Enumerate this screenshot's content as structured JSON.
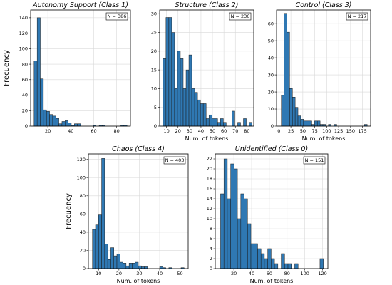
{
  "chart_data": [
    {
      "type": "bar",
      "title": "Autonomy Support (Class 1)",
      "n_label": "N = 386",
      "xlabel": "",
      "ylabel": "Frecuency",
      "xlim": [
        5,
        92
      ],
      "ylim": [
        0,
        150
      ],
      "xticks": [
        20,
        40,
        60,
        80
      ],
      "yticks": [
        0,
        20,
        40,
        60,
        80,
        100,
        120,
        140
      ],
      "bin_width": 2.7,
      "bins": [
        {
          "x": 8,
          "v": 84
        },
        {
          "x": 10.7,
          "v": 140
        },
        {
          "x": 13.4,
          "v": 61
        },
        {
          "x": 16.1,
          "v": 21
        },
        {
          "x": 18.8,
          "v": 19
        },
        {
          "x": 21.5,
          "v": 15
        },
        {
          "x": 24.2,
          "v": 13
        },
        {
          "x": 26.9,
          "v": 10
        },
        {
          "x": 29.6,
          "v": 3
        },
        {
          "x": 32.3,
          "v": 6
        },
        {
          "x": 35,
          "v": 7
        },
        {
          "x": 37.7,
          "v": 4
        },
        {
          "x": 40.4,
          "v": 1
        },
        {
          "x": 43.1,
          "v": 3
        },
        {
          "x": 45.8,
          "v": 3
        },
        {
          "x": 59.3,
          "v": 1
        },
        {
          "x": 64.7,
          "v": 1
        },
        {
          "x": 67.4,
          "v": 1
        },
        {
          "x": 83.6,
          "v": 1
        },
        {
          "x": 86.3,
          "v": 1
        }
      ]
    },
    {
      "type": "bar",
      "title": "Structure (Class 2)",
      "n_label": "N = 236",
      "xlabel": "Num. of tokens",
      "ylabel": "",
      "xlim": [
        4,
        86
      ],
      "ylim": [
        0,
        31
      ],
      "xticks": [
        10,
        20,
        30,
        40,
        50,
        60,
        70,
        80
      ],
      "yticks": [
        0,
        5,
        10,
        15,
        20,
        25,
        30
      ],
      "bin_width": 2.5,
      "bins": [
        {
          "x": 7,
          "v": 18
        },
        {
          "x": 9.5,
          "v": 29
        },
        {
          "x": 12,
          "v": 29
        },
        {
          "x": 14.5,
          "v": 25
        },
        {
          "x": 17,
          "v": 10
        },
        {
          "x": 19.5,
          "v": 20
        },
        {
          "x": 22,
          "v": 18
        },
        {
          "x": 24.5,
          "v": 10
        },
        {
          "x": 27,
          "v": 15
        },
        {
          "x": 29.5,
          "v": 19
        },
        {
          "x": 32,
          "v": 10
        },
        {
          "x": 34.5,
          "v": 9
        },
        {
          "x": 37,
          "v": 7
        },
        {
          "x": 39.5,
          "v": 6
        },
        {
          "x": 42,
          "v": 6
        },
        {
          "x": 44.5,
          "v": 2
        },
        {
          "x": 47,
          "v": 3
        },
        {
          "x": 49.5,
          "v": 2
        },
        {
          "x": 52,
          "v": 2
        },
        {
          "x": 54.5,
          "v": 1
        },
        {
          "x": 57,
          "v": 2
        },
        {
          "x": 59.5,
          "v": 1
        },
        {
          "x": 67,
          "v": 4
        },
        {
          "x": 72,
          "v": 1
        },
        {
          "x": 77,
          "v": 2
        },
        {
          "x": 82,
          "v": 1
        }
      ]
    },
    {
      "type": "bar",
      "title": "Control (Class 3)",
      "n_label": "N = 217",
      "xlabel": "Num. of tokens",
      "ylabel": "",
      "xlim": [
        -5,
        192
      ],
      "ylim": [
        0,
        68
      ],
      "xticks": [
        0,
        25,
        50,
        75,
        100,
        125,
        150,
        175
      ],
      "yticks": [
        0,
        10,
        20,
        30,
        40,
        50,
        60
      ],
      "bin_width": 5.8,
      "bins": [
        {
          "x": 5,
          "v": 18
        },
        {
          "x": 10.8,
          "v": 66
        },
        {
          "x": 16.6,
          "v": 55
        },
        {
          "x": 22.4,
          "v": 22
        },
        {
          "x": 28.2,
          "v": 17
        },
        {
          "x": 34,
          "v": 11
        },
        {
          "x": 39.8,
          "v": 6
        },
        {
          "x": 45.6,
          "v": 4
        },
        {
          "x": 51.4,
          "v": 3
        },
        {
          "x": 57.2,
          "v": 3
        },
        {
          "x": 63,
          "v": 3
        },
        {
          "x": 68.8,
          "v": 1
        },
        {
          "x": 74.6,
          "v": 3
        },
        {
          "x": 80.4,
          "v": 3
        },
        {
          "x": 86.2,
          "v": 1
        },
        {
          "x": 92,
          "v": 1
        },
        {
          "x": 103.6,
          "v": 1
        },
        {
          "x": 115.2,
          "v": 1
        },
        {
          "x": 179,
          "v": 1
        }
      ]
    },
    {
      "type": "bar",
      "title": "Chaos (Class 4)",
      "n_label": "N = 403",
      "xlabel": "Num. of tokens",
      "ylabel": "Frecuency",
      "xlim": [
        5,
        54
      ],
      "ylim": [
        0,
        126
      ],
      "xticks": [
        10,
        20,
        30,
        40,
        50
      ],
      "yticks": [
        0,
        20,
        40,
        60,
        80,
        100,
        120
      ],
      "bin_width": 1.5,
      "bins": [
        {
          "x": 7,
          "v": 43
        },
        {
          "x": 8.5,
          "v": 48
        },
        {
          "x": 10,
          "v": 59
        },
        {
          "x": 11.5,
          "v": 121
        },
        {
          "x": 13,
          "v": 27
        },
        {
          "x": 14.5,
          "v": 10
        },
        {
          "x": 16,
          "v": 23
        },
        {
          "x": 17.5,
          "v": 14
        },
        {
          "x": 19,
          "v": 16
        },
        {
          "x": 20.5,
          "v": 7
        },
        {
          "x": 22,
          "v": 6
        },
        {
          "x": 23.5,
          "v": 3
        },
        {
          "x": 25,
          "v": 6
        },
        {
          "x": 26.5,
          "v": 6
        },
        {
          "x": 28,
          "v": 7
        },
        {
          "x": 29.5,
          "v": 3
        },
        {
          "x": 31,
          "v": 2
        },
        {
          "x": 32.5,
          "v": 2
        },
        {
          "x": 40,
          "v": 2
        },
        {
          "x": 41.5,
          "v": 1
        },
        {
          "x": 44.5,
          "v": 1
        },
        {
          "x": 50.5,
          "v": 1
        }
      ]
    },
    {
      "type": "bar",
      "title": "Unidentified (Class 0)",
      "n_label": "N = 151",
      "xlabel": "Num. of tokens",
      "ylabel": "",
      "xlim": [
        -1,
        126
      ],
      "ylim": [
        0,
        23
      ],
      "xticks": [
        20,
        40,
        60,
        80,
        100,
        120
      ],
      "yticks": [
        0,
        2,
        4,
        6,
        8,
        10,
        12,
        14,
        16,
        18,
        20,
        22
      ],
      "bin_width": 3.8,
      "bins": [
        {
          "x": 5,
          "v": 15
        },
        {
          "x": 8.8,
          "v": 22
        },
        {
          "x": 12.6,
          "v": 14
        },
        {
          "x": 16.4,
          "v": 21
        },
        {
          "x": 20.2,
          "v": 20
        },
        {
          "x": 24,
          "v": 10
        },
        {
          "x": 27.8,
          "v": 15
        },
        {
          "x": 31.6,
          "v": 14
        },
        {
          "x": 35.4,
          "v": 9
        },
        {
          "x": 39.2,
          "v": 5
        },
        {
          "x": 43,
          "v": 5
        },
        {
          "x": 46.8,
          "v": 4
        },
        {
          "x": 50.6,
          "v": 3
        },
        {
          "x": 54.4,
          "v": 2
        },
        {
          "x": 58.2,
          "v": 4
        },
        {
          "x": 62,
          "v": 2
        },
        {
          "x": 65.8,
          "v": 1
        },
        {
          "x": 73.4,
          "v": 3
        },
        {
          "x": 77.2,
          "v": 1
        },
        {
          "x": 81,
          "v": 1
        },
        {
          "x": 88.6,
          "v": 1
        },
        {
          "x": 117.1,
          "v": 2
        }
      ]
    }
  ]
}
